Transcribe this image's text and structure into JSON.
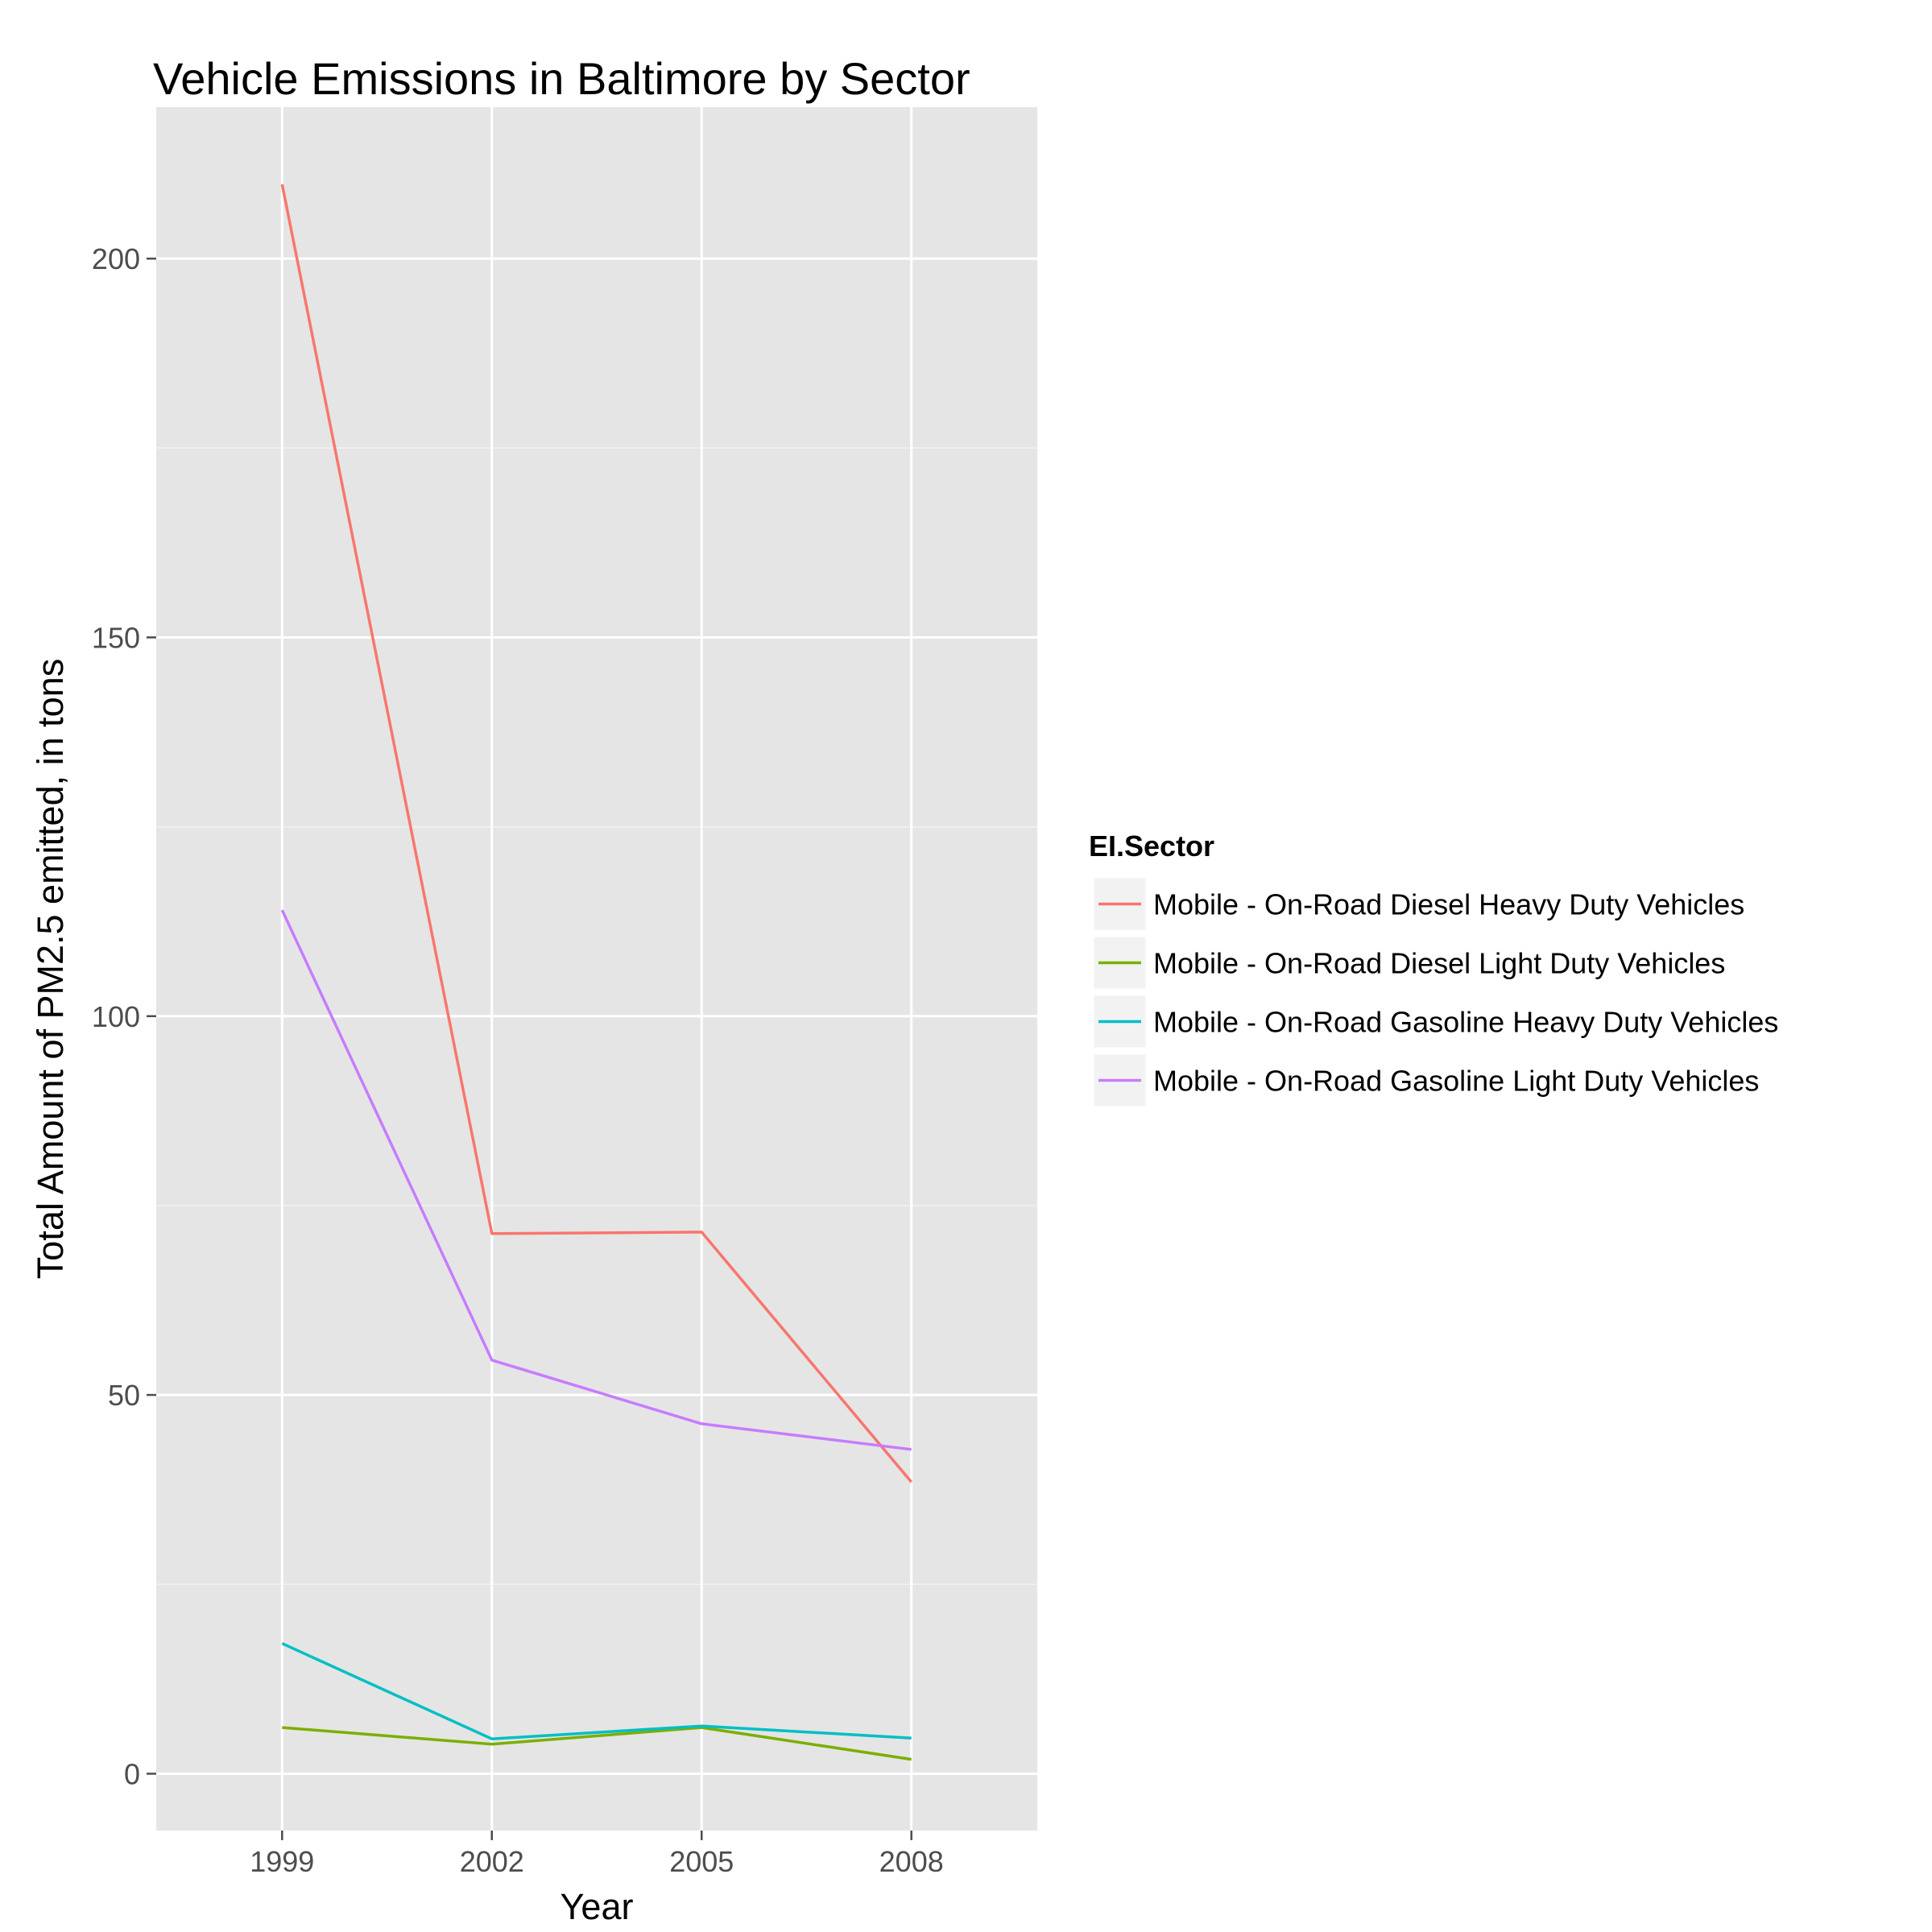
{
  "chart_data": {
    "type": "line",
    "title": "Vehicle Emissions in Baltimore by Sector",
    "xlabel": "Year",
    "ylabel": "Total Amount of PM2.5 emitted, in tons",
    "x": [
      "1999",
      "2002",
      "2005",
      "2008"
    ],
    "y_ticks": [
      "0",
      "50",
      "100",
      "150",
      "200"
    ],
    "ylim": [
      -7.5,
      220
    ],
    "grid": true,
    "legend": {
      "title": "EI.Sector",
      "position": "right"
    },
    "series": [
      {
        "name": "Mobile - On-Road Diesel Heavy Duty Vehicles",
        "color": "#F8766D",
        "values": [
          209.8,
          71.3,
          71.5,
          38.5
        ]
      },
      {
        "name": "Mobile - On-Road Diesel Light Duty Vehicles",
        "color": "#7CAE00",
        "values": [
          6.1,
          3.9,
          6.1,
          1.9
        ]
      },
      {
        "name": "Mobile - On-Road Gasoline Heavy Duty Vehicles",
        "color": "#00BFC4",
        "values": [
          17.2,
          4.6,
          6.3,
          4.7
        ]
      },
      {
        "name": "Mobile - On-Road Gasoline Light Duty Vehicles",
        "color": "#C77CFF",
        "values": [
          114.0,
          54.6,
          46.2,
          42.8
        ]
      }
    ]
  }
}
